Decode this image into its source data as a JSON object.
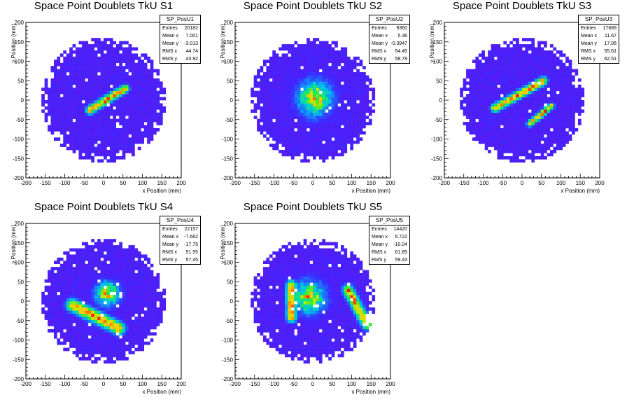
{
  "chart_data": [
    {
      "type": "heatmap",
      "title": "Space Point Doublets TkU S1",
      "xlabel": "x Position (mm)",
      "ylabel": "y Position (mm)",
      "xlim": [
        -200,
        200
      ],
      "ylim": [
        -200,
        200
      ],
      "xticks": [
        -200,
        -150,
        -100,
        -50,
        0,
        50,
        100,
        150,
        200
      ],
      "yticks": [
        -200,
        -150,
        -100,
        -50,
        0,
        50,
        100,
        150,
        200
      ],
      "stats": {
        "name": "SP_PosU1",
        "rows": [
          {
            "label": "Entries",
            "value": "20182"
          },
          {
            "label": "Mean x",
            "value": "7.001"
          },
          {
            "label": "Mean y",
            "value": "-3.013"
          },
          {
            "label": "RMS x",
            "value": "44.74"
          },
          {
            "label": "RMS y",
            "value": "43.92"
          }
        ]
      },
      "disk_radius_mm": 160,
      "background_color": "#6a1ef0",
      "features": [
        {
          "kind": "line",
          "from": [
            -35,
            -25
          ],
          "to": [
            55,
            30
          ],
          "width_mm": 8,
          "peak_color": "#ff0000"
        }
      ]
    },
    {
      "type": "heatmap",
      "title": "Space Point Doublets TkU S2",
      "xlabel": "x Position (mm)",
      "ylabel": "y Position (mm)",
      "xlim": [
        -200,
        200
      ],
      "ylim": [
        -200,
        200
      ],
      "xticks": [
        -200,
        -150,
        -100,
        -50,
        0,
        50,
        100,
        150,
        200
      ],
      "yticks": [
        -200,
        -150,
        -100,
        -50,
        0,
        50,
        100,
        150,
        200
      ],
      "stats": {
        "name": "SP_PosU2",
        "rows": [
          {
            "label": "Entries",
            "value": "9360"
          },
          {
            "label": "Mean x",
            "value": "5.36"
          },
          {
            "label": "Mean y",
            "value": "-0.3947"
          },
          {
            "label": "RMS x",
            "value": "54.45"
          },
          {
            "label": "RMS y",
            "value": "58.79"
          }
        ]
      },
      "disk_radius_mm": 160,
      "background_color": "#6a1ef0",
      "features": [
        {
          "kind": "blob",
          "center": [
            5,
            5
          ],
          "radius_mm": 65,
          "peak_color": "#ff0000"
        }
      ]
    },
    {
      "type": "heatmap",
      "title": "Space Point Doublets TkU S3",
      "xlabel": "x Position (mm)",
      "ylabel": "y Position (mm)",
      "xlim": [
        -200,
        200
      ],
      "ylim": [
        -200,
        200
      ],
      "xticks": [
        -200,
        -150,
        -100,
        -50,
        0,
        50,
        100,
        150,
        200
      ],
      "yticks": [
        -200,
        -150,
        -100,
        -50,
        0,
        50,
        100,
        150,
        200
      ],
      "stats": {
        "name": "SP_PosU3",
        "rows": [
          {
            "label": "Entries",
            "value": "17689"
          },
          {
            "label": "Mean x",
            "value": "11.67"
          },
          {
            "label": "Mean y",
            "value": "17.06"
          },
          {
            "label": "RMS x",
            "value": "55.61"
          },
          {
            "label": "RMS y",
            "value": "62.51"
          }
        ]
      },
      "disk_radius_mm": 160,
      "background_color": "#6a1ef0",
      "features": [
        {
          "kind": "line",
          "from": [
            -70,
            -20
          ],
          "to": [
            55,
            50
          ],
          "width_mm": 8,
          "peak_color": "#ff0000"
        },
        {
          "kind": "line",
          "from": [
            20,
            -60
          ],
          "to": [
            75,
            -15
          ],
          "width_mm": 6,
          "peak_color": "#00e0c0"
        }
      ]
    },
    {
      "type": "heatmap",
      "title": "Space Point Doublets TkU S4",
      "xlabel": "x Position (mm)",
      "ylabel": "y Position (mm)",
      "xlim": [
        -200,
        200
      ],
      "ylim": [
        -200,
        200
      ],
      "xticks": [
        -200,
        -150,
        -100,
        -50,
        0,
        50,
        100,
        150,
        200
      ],
      "yticks": [
        -200,
        -150,
        -100,
        -50,
        0,
        50,
        100,
        150,
        200
      ],
      "stats": {
        "name": "SP_PosU4",
        "rows": [
          {
            "label": "Entries",
            "value": "22157"
          },
          {
            "label": "Mean x",
            "value": "-7.662"
          },
          {
            "label": "Mean y",
            "value": "-17.75"
          },
          {
            "label": "RMS x",
            "value": "51.95"
          },
          {
            "label": "RMS y",
            "value": "57.45"
          }
        ]
      },
      "disk_radius_mm": 160,
      "background_color": "#6a1ef0",
      "features": [
        {
          "kind": "line",
          "from": [
            -80,
            -10
          ],
          "to": [
            40,
            -70
          ],
          "width_mm": 12,
          "peak_color": "#ff0000"
        },
        {
          "kind": "blob",
          "center": [
            10,
            20
          ],
          "radius_mm": 45,
          "peak_color": "#3a6cff"
        }
      ]
    },
    {
      "type": "heatmap",
      "title": "Space Point Doublets TkU S5",
      "xlabel": "x Position (mm)",
      "ylabel": "y Position (mm)",
      "xlim": [
        -200,
        200
      ],
      "ylim": [
        -200,
        200
      ],
      "xticks": [
        -200,
        -150,
        -100,
        -50,
        0,
        50,
        100,
        150,
        200
      ],
      "yticks": [
        -200,
        -150,
        -100,
        -50,
        0,
        50,
        100,
        150,
        200
      ],
      "stats": {
        "name": "SP_PosU5",
        "rows": [
          {
            "label": "Entries",
            "value": "14420"
          },
          {
            "label": "Mean x",
            "value": "6.722"
          },
          {
            "label": "Mean y",
            "value": "-10.04"
          },
          {
            "label": "RMS x",
            "value": "61.85"
          },
          {
            "label": "RMS y",
            "value": "59.43"
          }
        ]
      },
      "disk_radius_mm": 160,
      "background_color": "#6a1ef0",
      "features": [
        {
          "kind": "blob",
          "center": [
            -10,
            10
          ],
          "radius_mm": 60,
          "peak_color": "#ff0000"
        },
        {
          "kind": "line",
          "from": [
            -55,
            40
          ],
          "to": [
            -55,
            -40
          ],
          "width_mm": 10,
          "peak_color": "#ffcc00"
        },
        {
          "kind": "line",
          "from": [
            90,
            30
          ],
          "to": [
            140,
            -60
          ],
          "width_mm": 10,
          "peak_color": "#00d0e0"
        }
      ]
    }
  ]
}
